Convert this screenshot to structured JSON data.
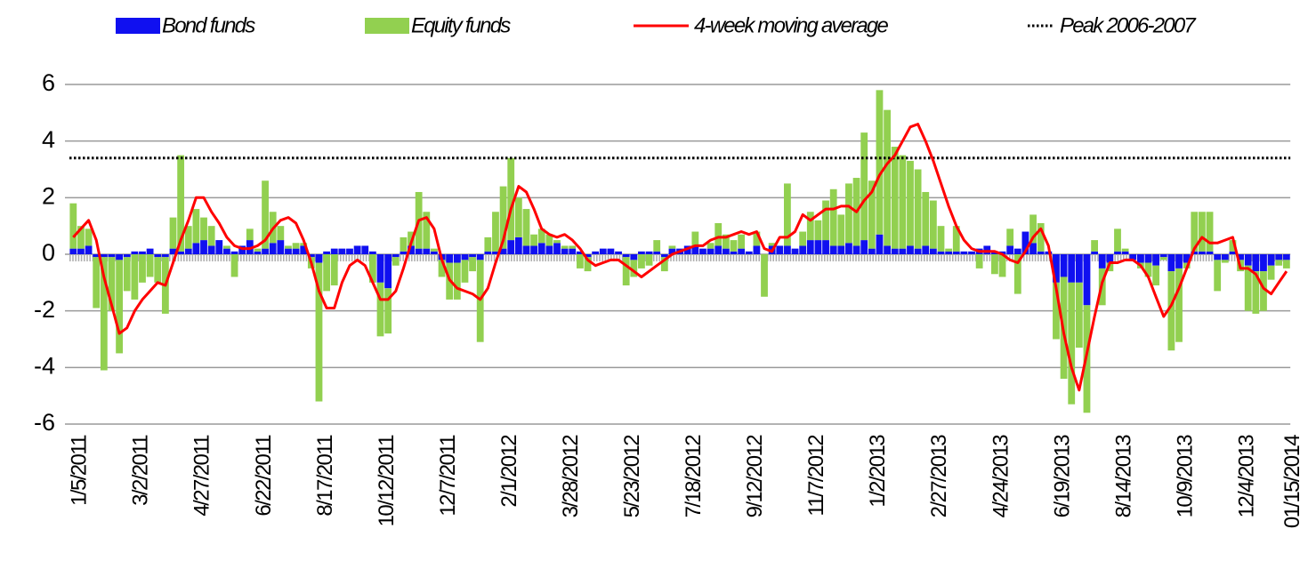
{
  "chart_data": {
    "type": "bar",
    "categories": [
      "1/5/2011",
      null,
      null,
      null,
      null,
      null,
      null,
      null,
      "3/2/2011",
      null,
      null,
      null,
      null,
      null,
      null,
      null,
      "4/27/2011",
      null,
      null,
      null,
      null,
      null,
      null,
      null,
      "6/22/2011",
      null,
      null,
      null,
      null,
      null,
      null,
      null,
      "8/17/2011",
      null,
      null,
      null,
      null,
      null,
      null,
      null,
      "10/12/2011",
      null,
      null,
      null,
      null,
      null,
      null,
      null,
      "12/7/2011",
      null,
      null,
      null,
      null,
      null,
      null,
      null,
      "2/1/2012",
      null,
      null,
      null,
      null,
      null,
      null,
      null,
      "3/28/2012",
      null,
      null,
      null,
      null,
      null,
      null,
      null,
      "5/23/2012",
      null,
      null,
      null,
      null,
      null,
      null,
      null,
      "7/18/2012",
      null,
      null,
      null,
      null,
      null,
      null,
      null,
      "9/12/2012",
      null,
      null,
      null,
      null,
      null,
      null,
      null,
      "11/7/2012",
      null,
      null,
      null,
      null,
      null,
      null,
      null,
      "1/2/2013",
      null,
      null,
      null,
      null,
      null,
      null,
      null,
      "2/27/2013",
      null,
      null,
      null,
      null,
      null,
      null,
      null,
      "4/24/2013",
      null,
      null,
      null,
      null,
      null,
      null,
      null,
      "6/19/2013",
      null,
      null,
      null,
      null,
      null,
      null,
      null,
      "8/14/2013",
      null,
      null,
      null,
      null,
      null,
      null,
      null,
      "10/9/2013",
      null,
      null,
      null,
      null,
      null,
      null,
      null,
      "12/4/2013",
      null,
      null,
      null,
      null,
      null,
      "01/15/2014"
    ],
    "series": [
      {
        "name": "Bond funds",
        "type": "bar",
        "color": "#1010f0",
        "values": [
          0.2,
          0.2,
          0.3,
          -0.1,
          -0.1,
          -0.1,
          -0.2,
          -0.1,
          0.1,
          0.1,
          0.2,
          -0.1,
          -0.1,
          0.2,
          0.1,
          0.2,
          0.4,
          0.5,
          0.3,
          0.5,
          0.2,
          0.1,
          0.3,
          0.5,
          0.1,
          0.2,
          0.4,
          0.5,
          0.2,
          0.2,
          0.3,
          -0.1,
          -0.3,
          0.1,
          0.2,
          0.2,
          0.2,
          0.3,
          0.3,
          0.1,
          -1.0,
          -1.2,
          -0.1,
          0.1,
          0.3,
          0.2,
          0.2,
          0.1,
          -0.2,
          -0.3,
          -0.3,
          -0.2,
          -0.1,
          -0.2,
          0.1,
          0.1,
          0.2,
          0.5,
          0.6,
          0.3,
          0.3,
          0.4,
          0.3,
          0.4,
          0.2,
          0.2,
          0.1,
          -0.1,
          0.1,
          0.2,
          0.2,
          0.1,
          -0.1,
          -0.2,
          0.1,
          0.1,
          0.1,
          -0.1,
          0.2,
          0.2,
          0.3,
          0.3,
          0.2,
          0.2,
          0.3,
          0.2,
          0.1,
          0.2,
          0.1,
          0.3,
          0,
          0.3,
          0.3,
          0.3,
          0.2,
          0.3,
          0.5,
          0.5,
          0.5,
          0.3,
          0.3,
          0.4,
          0.3,
          0.5,
          0.2,
          0.7,
          0.3,
          0.2,
          0.2,
          0.3,
          0.2,
          0.3,
          0.2,
          0.1,
          0.1,
          0.1,
          0.1,
          0.1,
          0.2,
          0.3,
          0.1,
          0.1,
          0.3,
          0.2,
          0.8,
          0.4,
          0.1,
          0.1,
          -1.0,
          -0.8,
          -1.0,
          -1.0,
          -1.8,
          0.1,
          -0.5,
          -0.3,
          0.1,
          0.1,
          -0.2,
          -0.3,
          -0.3,
          -0.4,
          -0.1,
          -0.6,
          -0.5,
          -0.3,
          0.1,
          0.1,
          0.1,
          -0.2,
          -0.2,
          0.1,
          -0.2,
          -0.4,
          -0.6,
          -0.6,
          -0.4,
          -0.2,
          -0.2
        ]
      },
      {
        "name": "Equity funds",
        "type": "bar",
        "color": "#92d050",
        "values": [
          1.6,
          0.8,
          0.6,
          -1.8,
          -4.0,
          -1.9,
          -3.3,
          -1.2,
          -1.6,
          -1.0,
          -0.8,
          -0.9,
          -2.0,
          1.1,
          3.4,
          0.8,
          1.2,
          0.8,
          0.7,
          0,
          0.1,
          -0.8,
          0,
          0.4,
          0.1,
          2.4,
          1.1,
          0.5,
          0.1,
          0.2,
          0.1,
          -0.4,
          -4.9,
          -1.3,
          -1.1,
          0,
          0,
          0,
          0,
          -1.0,
          -1.9,
          -1.6,
          -0.3,
          0.5,
          0.5,
          2.0,
          1.3,
          0.1,
          -0.6,
          -1.3,
          -1.3,
          -0.8,
          -0.5,
          -2.9,
          0.5,
          1.4,
          2.2,
          2.9,
          1.4,
          1.3,
          0.4,
          0.5,
          0.4,
          0.1,
          0.1,
          0.1,
          -0.5,
          -0.5,
          0,
          0,
          0,
          0,
          -1.0,
          -0.6,
          -0.5,
          -0.4,
          0.4,
          -0.5,
          0.1,
          0,
          0,
          0.5,
          0,
          0.2,
          0.8,
          0.5,
          0.4,
          0.5,
          0,
          0.5,
          -1.5,
          0.1,
          0,
          2.2,
          0,
          0.5,
          1.0,
          0.7,
          1.4,
          2.0,
          1.1,
          2.1,
          2.4,
          3.8,
          2.4,
          5.1,
          4.8,
          3.6,
          3.3,
          3.0,
          2.8,
          1.9,
          1.7,
          0.9,
          0.1,
          0.9,
          0,
          0,
          -0.5,
          0,
          -0.7,
          -0.8,
          0.6,
          -1.4,
          0,
          1.0,
          1.0,
          0,
          -2.0,
          -3.6,
          -4.3,
          -2.3,
          -3.8,
          0.4,
          -1.3,
          -0.3,
          0.8,
          0.1,
          0,
          -0.2,
          -0.5,
          -0.7,
          -0.1,
          -2.8,
          -2.6,
          -0.2,
          1.4,
          1.4,
          1.4,
          -1.1,
          -0.1,
          0.4,
          -0.4,
          -1.6,
          -1.5,
          -1.4,
          -0.5,
          -0.2,
          -0.3
        ]
      },
      {
        "name": "4-week moving average",
        "type": "line",
        "color": "#ff0000",
        "values": [
          0.6,
          0.9,
          1.2,
          0.5,
          -0.8,
          -1.8,
          -2.8,
          -2.6,
          -2.0,
          -1.6,
          -1.3,
          -1.0,
          -1.1,
          -0.3,
          0.5,
          1.2,
          2.0,
          2.0,
          1.5,
          1.1,
          0.6,
          0.3,
          0.2,
          0.2,
          0.3,
          0.5,
          0.9,
          1.2,
          1.3,
          1.1,
          0.5,
          -0.3,
          -1.3,
          -1.9,
          -1.9,
          -1.0,
          -0.4,
          -0.2,
          -0.4,
          -1.0,
          -1.6,
          -1.6,
          -1.3,
          -0.5,
          0.4,
          1.2,
          1.3,
          0.9,
          -0.2,
          -0.9,
          -1.2,
          -1.3,
          -1.4,
          -1.6,
          -1.2,
          -0.3,
          0.5,
          1.6,
          2.4,
          2.2,
          1.6,
          0.9,
          0.7,
          0.6,
          0.7,
          0.5,
          0.2,
          -0.2,
          -0.4,
          -0.3,
          -0.2,
          -0.2,
          -0.4,
          -0.6,
          -0.8,
          -0.6,
          -0.4,
          -0.2,
          0,
          0.1,
          0.2,
          0.3,
          0.3,
          0.5,
          0.6,
          0.6,
          0.7,
          0.8,
          0.7,
          0.8,
          0.2,
          0.1,
          0.6,
          0.6,
          0.8,
          1.4,
          1.2,
          1.4,
          1.6,
          1.6,
          1.7,
          1.7,
          1.5,
          1.9,
          2.2,
          2.8,
          3.2,
          3.5,
          4.0,
          4.5,
          4.6,
          4.0,
          3.3,
          2.5,
          1.7,
          1.0,
          0.5,
          0.2,
          0.1,
          0.1,
          0.1,
          0,
          -0.2,
          -0.3,
          0.1,
          0.6,
          0.9,
          0.3,
          -1.2,
          -2.8,
          -4.0,
          -4.8,
          -3.5,
          -2.2,
          -1.0,
          -0.3,
          -0.3,
          -0.2,
          -0.2,
          -0.4,
          -0.8,
          -1.5,
          -2.2,
          -1.8,
          -1.2,
          -0.5,
          0.2,
          0.6,
          0.4,
          0.4,
          0.5,
          0.6,
          -0.5,
          -0.5,
          -0.7,
          -1.2,
          -1.4,
          -1.0,
          -0.6
        ]
      }
    ],
    "reference_lines": [
      {
        "name": "Peak 2006-2007",
        "value": 3.4,
        "color": "#000000",
        "style": "dotted"
      }
    ],
    "ylim": [
      -6,
      6
    ],
    "yticks": [
      -6,
      -4,
      -2,
      0,
      2,
      4,
      6
    ],
    "grid": true,
    "legend": "top"
  }
}
